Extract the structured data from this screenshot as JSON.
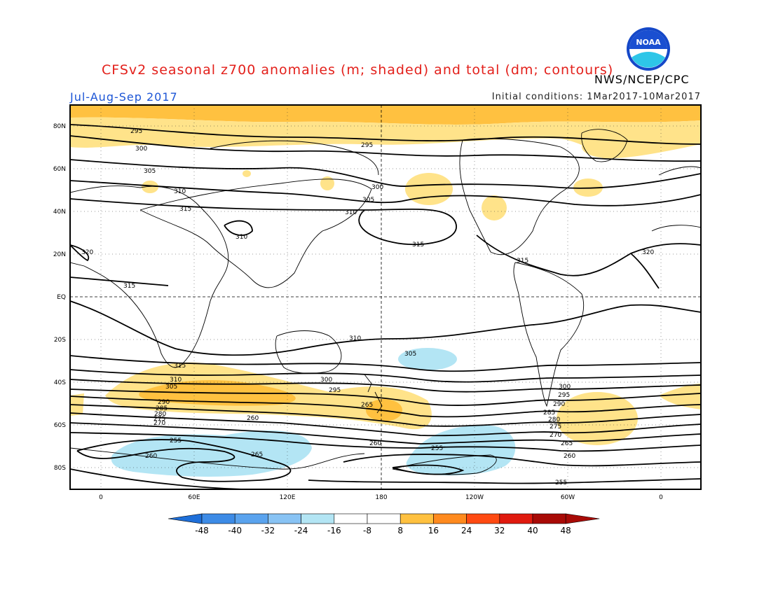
{
  "header": {
    "title": "CFSv2 seasonal z700 anomalies (m; shaded) and total (dm; contours)",
    "agency": "NWS/NCEP/CPC",
    "period": "Jul-Aug-Sep 2017",
    "initial_conditions": "Initial conditions: 1Mar2017-10Mar2017",
    "logo_text": "NOAA"
  },
  "map": {
    "lat_labels": [
      "80N",
      "60N",
      "40N",
      "20N",
      "EQ",
      "20S",
      "40S",
      "60S",
      "80S"
    ],
    "lon_labels": [
      "0",
      "60E",
      "120E",
      "180",
      "120W",
      "60W",
      "0"
    ],
    "contour_labels": [
      "295",
      "300",
      "305",
      "310",
      "315",
      "320",
      "295",
      "300",
      "305",
      "310",
      "315",
      "310",
      "315",
      "320",
      "315",
      "310",
      "305",
      "315",
      "310",
      "305",
      "300",
      "295",
      "290",
      "285",
      "280",
      "275",
      "270",
      "265",
      "260",
      "255",
      "260",
      "265",
      "300",
      "295",
      "290",
      "285",
      "280",
      "275",
      "270",
      "265",
      "260",
      "255",
      "260",
      "255"
    ]
  },
  "colorbar": {
    "ticks": [
      "-48",
      "-40",
      "-32",
      "-24",
      "-16",
      "-8",
      "8",
      "16",
      "24",
      "32",
      "40",
      "48"
    ],
    "colors": [
      "#1e6fd9",
      "#3d8be6",
      "#5aa3ee",
      "#88c3f4",
      "#b3e5f4",
      "#ffffff",
      "#ffe38a",
      "#ffc140",
      "#ff8a1e",
      "#ff4a12",
      "#e01a0e",
      "#a80a06"
    ]
  }
}
